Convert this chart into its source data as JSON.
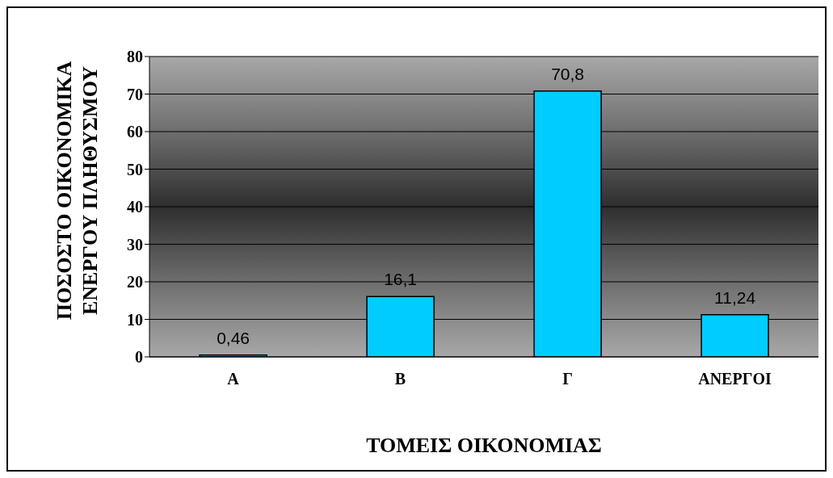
{
  "chart_data": {
    "type": "bar",
    "xlabel": "ΤΟΜΕΙΣ ΟΙΚΟΝΟΜΙΑΣ",
    "ylabel": "ΠΟΣΟΣΤΟ ΟΙΚΟΝΟΜΙΚΑ ΕΝΕΡΓΟΥ ΠΛΗΘΥΣΜΟΥ",
    "categories": [
      "Α",
      "Β",
      "Γ",
      "ΑΝΕΡΓΟΙ"
    ],
    "values": [
      0.46,
      16.1,
      70.8,
      11.24
    ],
    "value_labels": [
      "0,46",
      "16,1",
      "70,8",
      "11,24"
    ],
    "color": "#00ccff",
    "ylim": [
      0,
      80
    ],
    "yticks": [
      0,
      10,
      20,
      30,
      40,
      50,
      60,
      70,
      80
    ],
    "grid": "y"
  }
}
